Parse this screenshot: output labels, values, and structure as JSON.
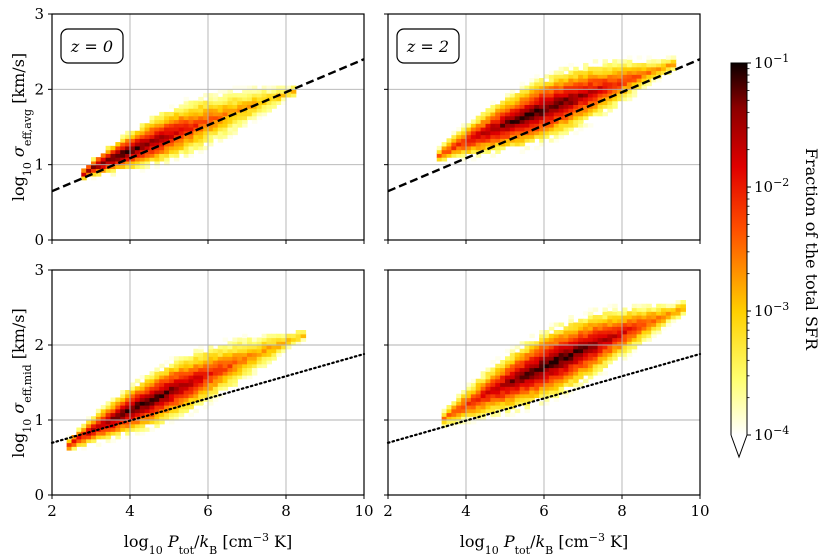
{
  "chart_data": {
    "type": "heatmap",
    "title": "",
    "x_range": [
      2,
      10
    ],
    "y_range": [
      0,
      3
    ],
    "x_ticks": [
      "2",
      "4",
      "6",
      "8",
      "10"
    ],
    "y_ticks": [
      "0",
      "1",
      "2",
      "3"
    ],
    "xlabel": {
      "prefix": "log",
      "sub": "10",
      "var": "P",
      "var_sub": "tot",
      "slash": "/",
      "var2": "k",
      "var2_sub": "B",
      "unit": "[cm",
      "unit_sup": "−3",
      "unit_end": " K]"
    },
    "ylabel_top": {
      "prefix": "log",
      "sub": "10",
      "var": "σ",
      "var_sub": "eff,avg",
      "unit": "[km/s]"
    },
    "ylabel_bottom": {
      "prefix": "log",
      "sub": "10",
      "var": "σ",
      "var_sub": "eff,mid",
      "unit": "[km/s]"
    },
    "panels": [
      {
        "id": "top-left",
        "label": "z = 0",
        "line": {
          "style": "dashed",
          "slope": 0.219,
          "intercept": 0.21
        },
        "ridge": {
          "x0": 2.8,
          "x1": 8.3,
          "y0": 0.88,
          "y1": 2.0,
          "width": 0.18,
          "peak_x": 3.8,
          "spread": 0.12
        }
      },
      {
        "id": "top-right",
        "label": "z = 2",
        "line": {
          "style": "dashed",
          "slope": 0.219,
          "intercept": 0.21
        },
        "ridge": {
          "x0": 3.3,
          "x1": 9.4,
          "y0": 1.12,
          "y1": 2.35,
          "width": 0.22,
          "peak_x": 5.8,
          "spread": 0.2
        }
      },
      {
        "id": "bottom-left",
        "label": "",
        "line": {
          "style": "dotted",
          "slope": 0.148,
          "intercept": 0.4
        },
        "ridge": {
          "x0": 2.4,
          "x1": 8.5,
          "y0": 0.65,
          "y1": 2.15,
          "width": 0.2,
          "peak_x": 4.3,
          "spread": 0.14
        }
      },
      {
        "id": "bottom-right",
        "label": "",
        "line": {
          "style": "dotted",
          "slope": 0.148,
          "intercept": 0.4
        },
        "ridge": {
          "x0": 3.4,
          "x1": 9.6,
          "y0": 1.0,
          "y1": 2.5,
          "width": 0.24,
          "peak_x": 6.2,
          "spread": 0.22
        }
      }
    ],
    "colorbar": {
      "label": "Fraction of the total SFR",
      "scale": "log",
      "range": [
        0.0001,
        0.1
      ],
      "colormap": "hot_r",
      "ticks": [
        {
          "base": "10",
          "exp": "−1"
        },
        {
          "base": "10",
          "exp": "−2"
        },
        {
          "base": "10",
          "exp": "−3"
        },
        {
          "base": "10",
          "exp": "−4"
        }
      ],
      "extend": "min"
    }
  }
}
